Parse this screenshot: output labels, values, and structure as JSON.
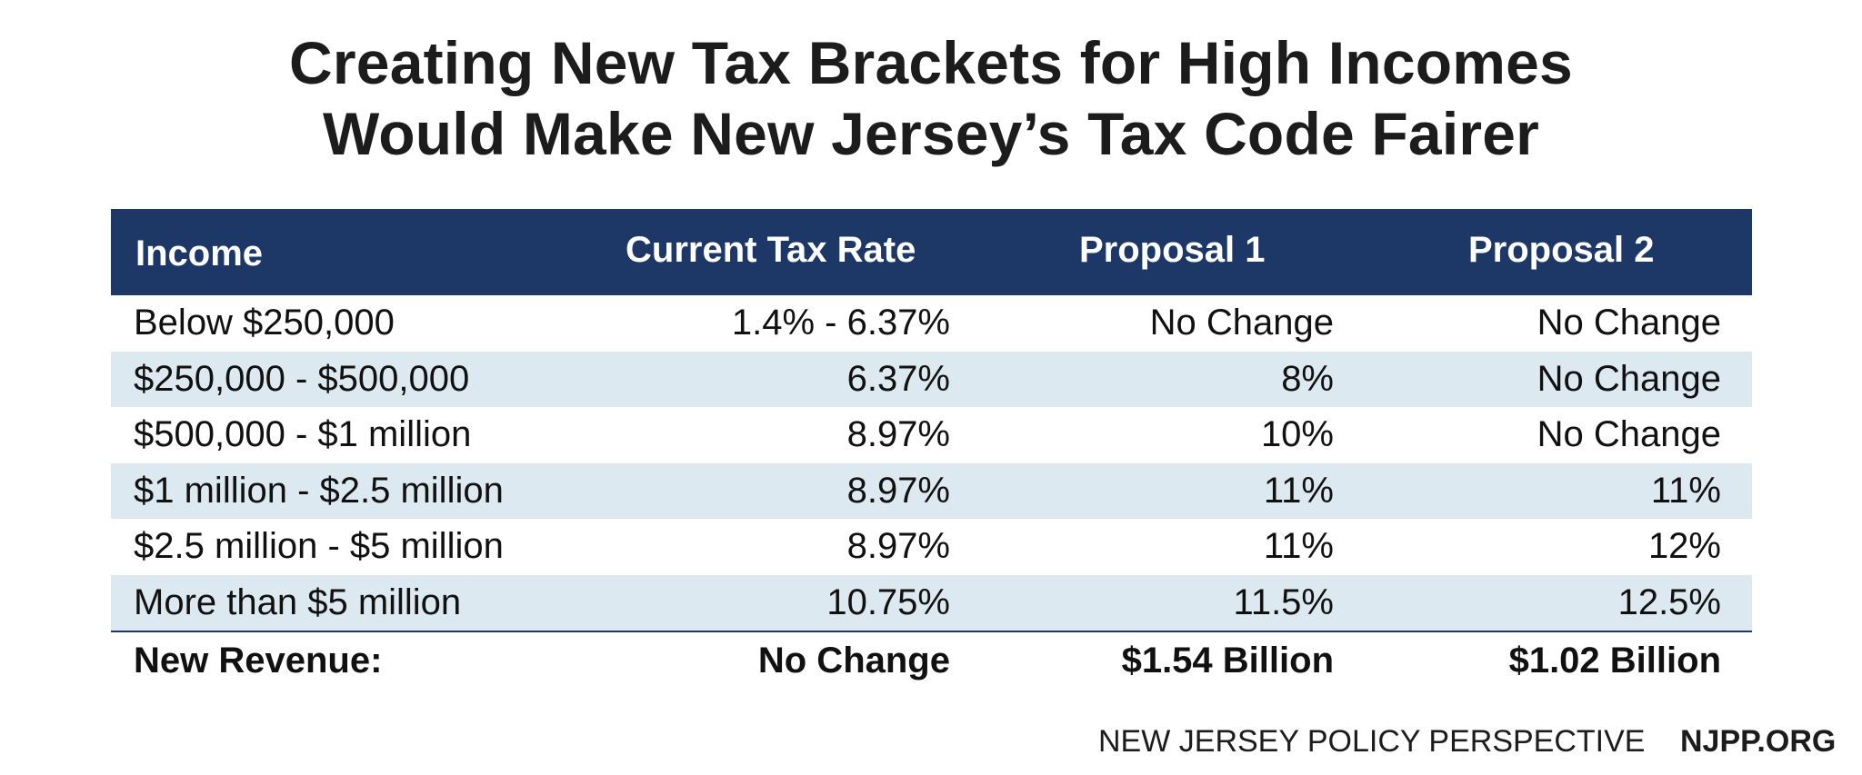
{
  "chart_data": {
    "type": "table",
    "title": [
      "Creating New Tax Brackets for High Incomes",
      "Would Make New Jersey’s Tax Code Fairer"
    ],
    "columns": [
      "Income",
      "Current Tax Rate",
      "Proposal 1",
      "Proposal 2"
    ],
    "rows": [
      [
        "Below $250,000",
        "1.4% - 6.37%",
        "No Change",
        "No Change"
      ],
      [
        "$250,000 - $500,000",
        "6.37%",
        "8%",
        "No Change"
      ],
      [
        "$500,000 - $1 million",
        "8.97%",
        "10%",
        "No Change"
      ],
      [
        "$1 million - $2.5 million",
        "8.97%",
        "11%",
        "11%"
      ],
      [
        "$2.5 million - $5 million",
        "8.97%",
        "11%",
        "12%"
      ],
      [
        "More than $5 million",
        "10.75%",
        "11.5%",
        "12.5%"
      ]
    ],
    "total_row": [
      "New Revenue:",
      "No Change",
      "$1.54 Billion",
      "$1.02 Billion"
    ]
  },
  "footer": {
    "organization": "NEW JERSEY POLICY PERSPECTIVE",
    "website": "NJPP.ORG"
  },
  "colors": {
    "header_background": "#1d3867",
    "header_text": "#ffffff",
    "stripe_background": "#dde9f0",
    "text": "#111111"
  }
}
